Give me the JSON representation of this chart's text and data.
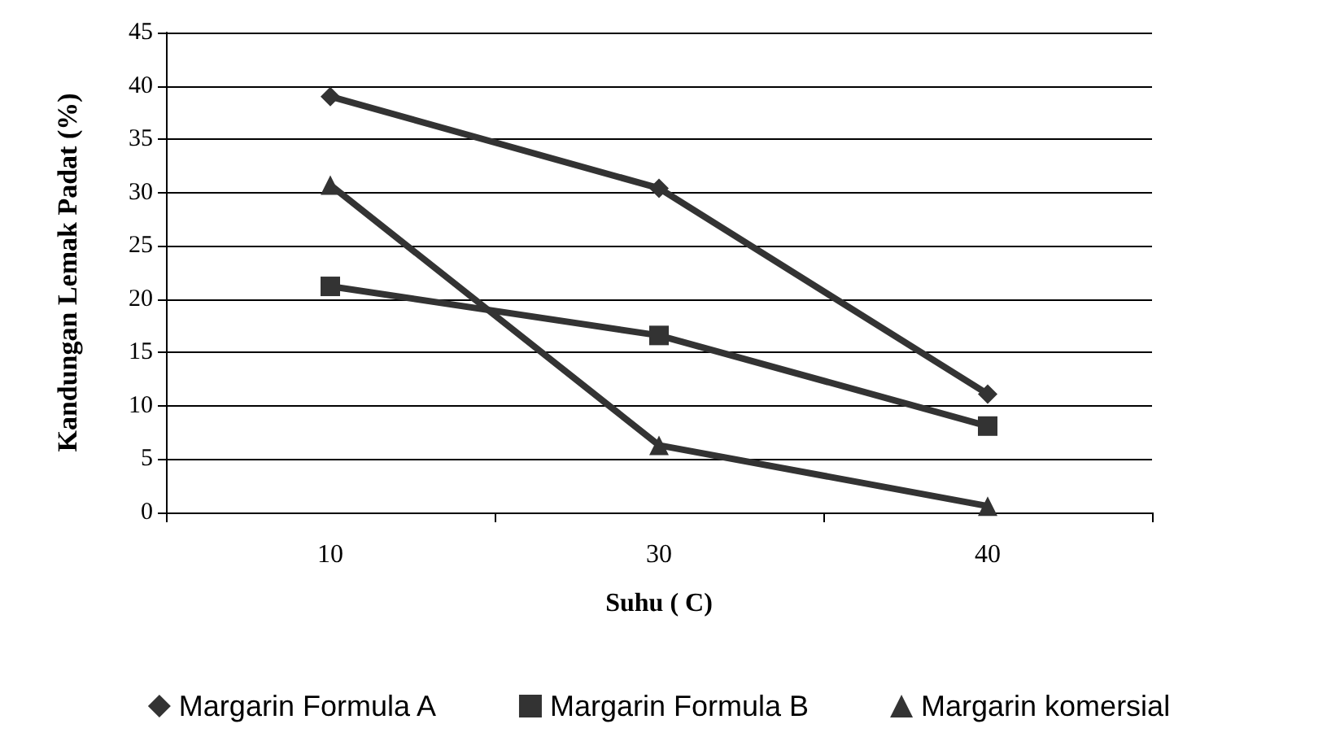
{
  "chart_data": {
    "type": "line",
    "xlabel": "Suhu ( C)",
    "ylabel": "Kandungan Lemak Padat (%)",
    "categories": [
      "10",
      "30",
      "40"
    ],
    "series": [
      {
        "name": "Margarin Formula A",
        "color": "#333333",
        "marker": "diamond",
        "values": [
          39,
          30.4,
          11.1
        ]
      },
      {
        "name": "Margarin Formula B",
        "color": "#333333",
        "marker": "square",
        "values": [
          21.2,
          16.6,
          8.1
        ]
      },
      {
        "name": "Margarin komersial",
        "color": "#333333",
        "marker": "triangle",
        "values": [
          30.7,
          6.3,
          0.6
        ]
      }
    ],
    "ylim": [
      0,
      45
    ],
    "yticks": [
      0,
      5,
      10,
      15,
      20,
      25,
      30,
      35,
      40,
      45
    ],
    "grid": "y",
    "legend": "bottom",
    "line_style": "solid"
  }
}
